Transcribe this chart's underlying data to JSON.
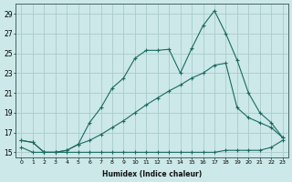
{
  "bg_color": "#cce8e8",
  "grid_color": "#aacccc",
  "line_color": "#1a6a60",
  "xlabel": "Humidex (Indice chaleur)",
  "xlim": [
    -0.5,
    23.5
  ],
  "ylim": [
    14.5,
    30.0
  ],
  "yticks": [
    15,
    17,
    19,
    21,
    23,
    25,
    27,
    29
  ],
  "xticks": [
    0,
    1,
    2,
    3,
    4,
    5,
    6,
    7,
    8,
    9,
    10,
    11,
    12,
    13,
    14,
    15,
    16,
    17,
    18,
    19,
    20,
    21,
    22,
    23
  ],
  "line1_x": [
    0,
    1,
    2,
    3,
    4,
    5,
    6,
    7,
    8,
    9,
    10,
    11,
    12,
    13,
    14,
    15,
    16,
    17,
    18,
    19,
    20,
    21,
    22,
    23
  ],
  "line1_y": [
    16.2,
    16.0,
    15.0,
    15.0,
    15.2,
    15.8,
    18.0,
    19.5,
    21.5,
    22.5,
    24.5,
    25.3,
    25.3,
    25.4,
    23.0,
    25.5,
    27.8,
    29.3,
    27.0,
    24.3,
    21.0,
    19.0,
    18.0,
    16.5
  ],
  "line2_x": [
    0,
    1,
    2,
    3,
    4,
    5,
    6,
    7,
    8,
    9,
    10,
    11,
    12,
    13,
    14,
    15,
    16,
    17,
    18,
    19,
    20,
    21,
    22,
    23
  ],
  "line2_y": [
    16.2,
    16.0,
    15.0,
    15.0,
    15.2,
    15.8,
    16.2,
    16.8,
    17.5,
    18.2,
    19.0,
    19.8,
    20.5,
    21.2,
    21.8,
    22.5,
    23.0,
    23.8,
    24.0,
    19.5,
    18.5,
    18.0,
    17.5,
    16.5
  ],
  "line3_x": [
    0,
    1,
    2,
    3,
    4,
    5,
    6,
    7,
    8,
    9,
    10,
    11,
    12,
    13,
    14,
    15,
    16,
    17,
    18,
    19,
    20,
    21,
    22,
    23
  ],
  "line3_y": [
    15.5,
    15.0,
    15.0,
    15.0,
    15.0,
    15.0,
    15.0,
    15.0,
    15.0,
    15.0,
    15.0,
    15.0,
    15.0,
    15.0,
    15.0,
    15.0,
    15.0,
    15.0,
    15.2,
    15.2,
    15.2,
    15.2,
    15.5,
    16.2
  ]
}
